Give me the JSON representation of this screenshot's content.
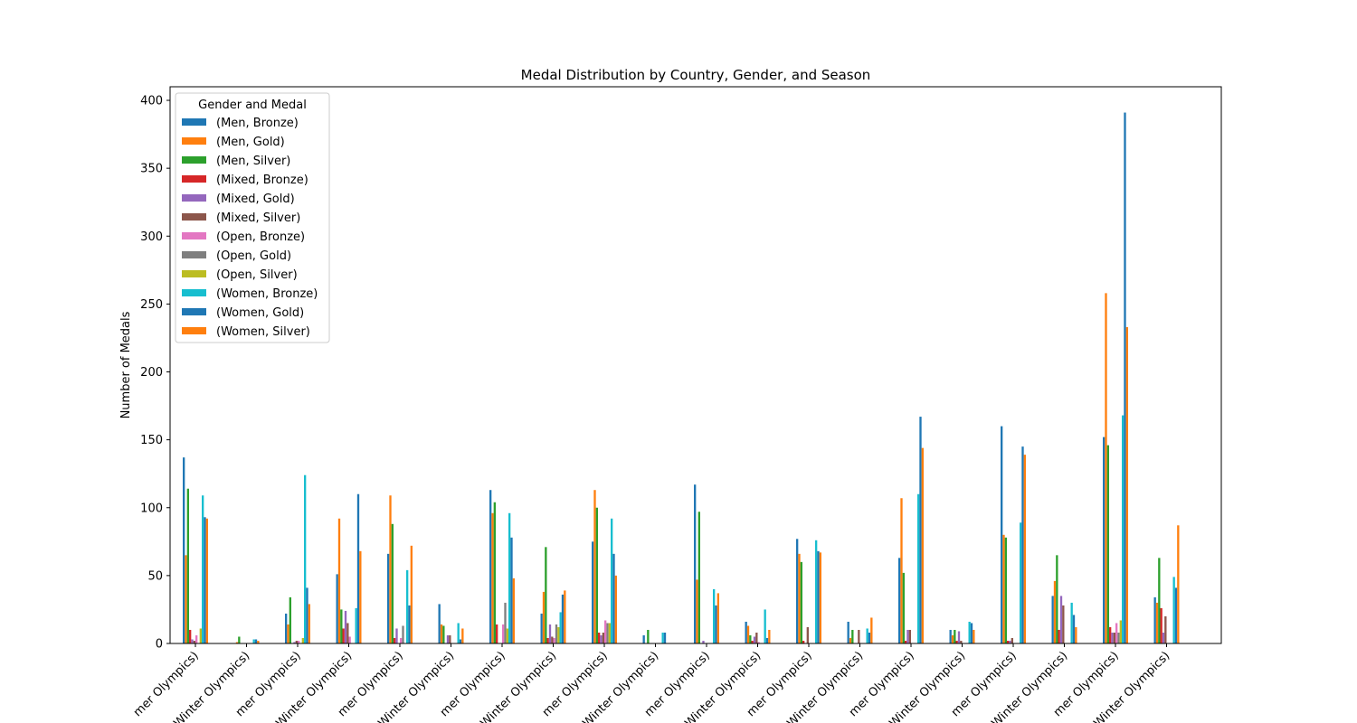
{
  "chart_data": {
    "type": "bar",
    "title": "Medal Distribution by Country, Gender, and Season",
    "xlabel": "",
    "ylabel": "Number of Medals",
    "ylim": [
      0,
      410
    ],
    "yticks": [
      0,
      50,
      100,
      150,
      200,
      250,
      300,
      350,
      400
    ],
    "grid": false,
    "legend": {
      "title": "Gender and Medal",
      "placement": "top-left"
    },
    "categories": [
      "mer Olympics)",
      "Winter Olympics)",
      "mer Olympics)",
      "Winter Olympics)",
      "mer Olympics)",
      "Winter Olympics)",
      "mer Olympics)",
      "Winter Olympics)",
      "mer Olympics)",
      "Winter Olympics)",
      "mer Olympics)",
      "Winter Olympics)",
      "mer Olympics)",
      "Winter Olympics)",
      "mer Olympics)",
      "Winter Olympics)",
      "mer Olympics)",
      "Winter Olympics)",
      "mer Olympics)",
      "Winter Olympics)"
    ],
    "series": [
      {
        "name": "(Men, Bronze)",
        "color": "#1f77b4",
        "values": [
          137,
          0,
          22,
          51,
          66,
          29,
          113,
          22,
          75,
          6,
          117,
          16,
          77,
          16,
          63,
          10,
          160,
          35,
          152,
          34
        ]
      },
      {
        "name": "(Men, Gold)",
        "color": "#ff7f0e",
        "values": [
          65,
          1,
          14,
          92,
          109,
          14,
          96,
          38,
          113,
          0,
          47,
          13,
          66,
          4,
          107,
          6,
          80,
          46,
          258,
          30
        ]
      },
      {
        "name": "(Men, Silver)",
        "color": "#2ca02c",
        "values": [
          114,
          5,
          34,
          25,
          88,
          13,
          104,
          71,
          100,
          10,
          97,
          6,
          60,
          10,
          52,
          10,
          78,
          65,
          146,
          63
        ]
      },
      {
        "name": "(Mixed, Bronze)",
        "color": "#d62728",
        "values": [
          10,
          0,
          0,
          11,
          4,
          0,
          14,
          4,
          8,
          0,
          0,
          2,
          2,
          0,
          2,
          2,
          2,
          10,
          12,
          26
        ]
      },
      {
        "name": "(Mixed, Gold)",
        "color": "#9467bd",
        "values": [
          3,
          0,
          1,
          24,
          11,
          6,
          0,
          14,
          6,
          0,
          2,
          5,
          0,
          0,
          10,
          9,
          2,
          35,
          8,
          8
        ]
      },
      {
        "name": "(Mixed, Silver)",
        "color": "#8c564b",
        "values": [
          2,
          0,
          2,
          15,
          0,
          6,
          0,
          5,
          8,
          0,
          0,
          8,
          12,
          10,
          10,
          2,
          4,
          28,
          8,
          20
        ]
      },
      {
        "name": "(Open, Bronze)",
        "color": "#e377c2",
        "values": [
          6,
          0,
          2,
          5,
          4,
          0,
          14,
          4,
          17,
          0,
          0,
          1,
          0,
          0,
          0,
          0,
          0,
          0,
          15,
          0
        ]
      },
      {
        "name": "(Open, Gold)",
        "color": "#7f7f7f",
        "values": [
          0,
          0,
          0,
          0,
          13,
          0,
          30,
          14,
          15,
          0,
          0,
          0,
          0,
          0,
          0,
          0,
          0,
          0,
          8,
          0
        ]
      },
      {
        "name": "(Open, Silver)",
        "color": "#bcbd22",
        "values": [
          11,
          0,
          4,
          0,
          0,
          0,
          11,
          12,
          15,
          0,
          0,
          0,
          0,
          0,
          0,
          0,
          0,
          0,
          17,
          0
        ]
      },
      {
        "name": "(Women, Bronze)",
        "color": "#17becf",
        "values": [
          109,
          3,
          124,
          26,
          54,
          15,
          96,
          23,
          92,
          8,
          40,
          25,
          76,
          11,
          110,
          16,
          89,
          30,
          168,
          49
        ]
      },
      {
        "name": "(Women, Gold)",
        "color": "#1f77b4",
        "values": [
          93,
          3,
          41,
          110,
          28,
          3,
          78,
          36,
          66,
          8,
          28,
          4,
          68,
          8,
          167,
          15,
          145,
          21,
          391,
          41
        ]
      },
      {
        "name": "(Women, Silver)",
        "color": "#ff7f0e",
        "values": [
          92,
          2,
          29,
          68,
          72,
          11,
          48,
          39,
          50,
          0,
          37,
          10,
          67,
          19,
          144,
          10,
          139,
          12,
          233,
          87
        ]
      }
    ]
  }
}
